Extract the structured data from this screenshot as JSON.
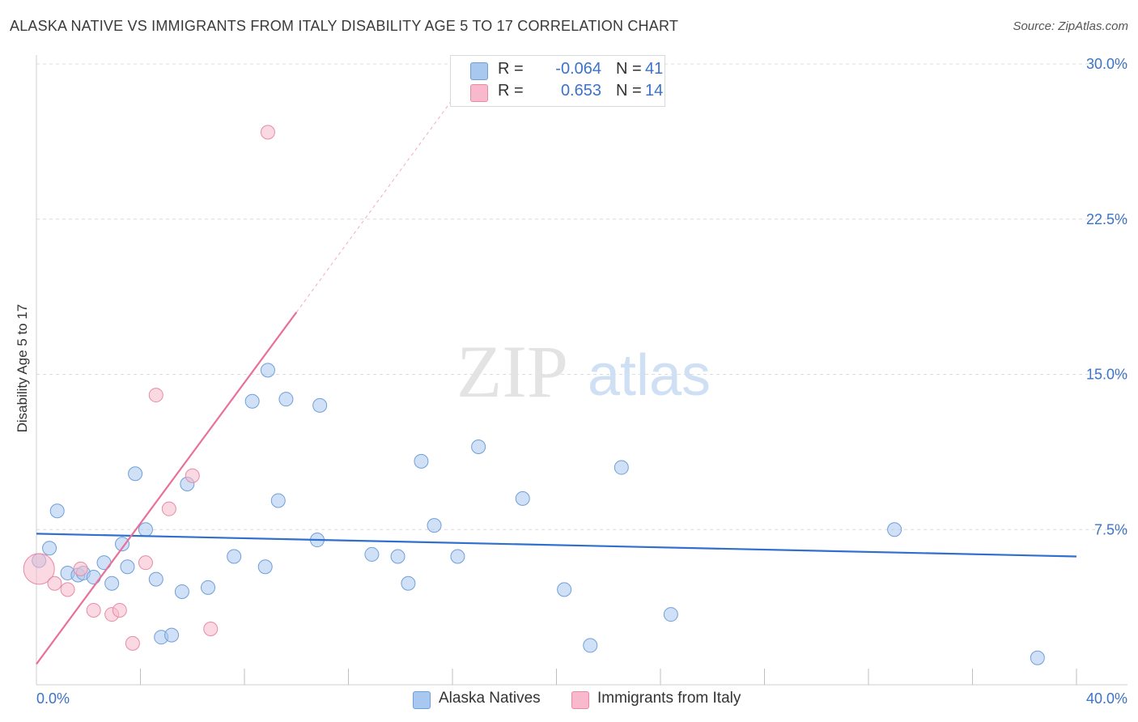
{
  "title": "ALASKA NATIVE VS IMMIGRANTS FROM ITALY DISABILITY AGE 5 TO 17 CORRELATION CHART",
  "source": "Source: ZipAtlas.com",
  "watermark": {
    "zip": "ZIP",
    "atlas": "atlas"
  },
  "legend": {
    "rows": [
      {
        "r_label": "R =",
        "r_value": "-0.064",
        "n_label": "N =",
        "n_value": "41",
        "color": "#a9c8f0"
      },
      {
        "r_label": "R =",
        "r_value": "0.653",
        "n_label": "N =",
        "n_value": "14",
        "color": "#f7b9cb"
      }
    ]
  },
  "bottom_legend": [
    "Alaska Natives",
    "Immigrants from Italy"
  ],
  "chart_data": {
    "type": "scatter",
    "title": "ALASKA NATIVE VS IMMIGRANTS FROM ITALY DISABILITY AGE 5 TO 17 CORRELATION CHART",
    "xlabel": "",
    "ylabel": "Disability Age 5 to 17",
    "xlim": [
      0,
      40
    ],
    "ylim": [
      0,
      30
    ],
    "x_tick_labels": [
      "0.0%",
      "40.0%"
    ],
    "y_ticks": [
      7.5,
      15.0,
      22.5,
      30.0
    ],
    "y_tick_labels": [
      "7.5%",
      "15.0%",
      "22.5%",
      "30.0%"
    ],
    "grid": true,
    "series": [
      {
        "name": "Alaska Natives",
        "color": "#a9c8f0",
        "stroke": "#6f9fd8",
        "points": [
          [
            0.1,
            6.0
          ],
          [
            0.5,
            6.6
          ],
          [
            0.8,
            8.4
          ],
          [
            1.2,
            5.4
          ],
          [
            1.6,
            5.3
          ],
          [
            1.8,
            5.4
          ],
          [
            2.2,
            5.2
          ],
          [
            2.6,
            5.9
          ],
          [
            2.9,
            4.9
          ],
          [
            3.3,
            6.8
          ],
          [
            3.5,
            5.7
          ],
          [
            3.8,
            10.2
          ],
          [
            4.2,
            7.5
          ],
          [
            4.6,
            5.1
          ],
          [
            4.8,
            2.3
          ],
          [
            5.2,
            2.4
          ],
          [
            5.6,
            4.5
          ],
          [
            5.8,
            9.7
          ],
          [
            6.6,
            4.7
          ],
          [
            7.6,
            6.2
          ],
          [
            8.3,
            13.7
          ],
          [
            8.8,
            5.7
          ],
          [
            8.9,
            15.2
          ],
          [
            9.3,
            8.9
          ],
          [
            9.6,
            13.8
          ],
          [
            10.8,
            7.0
          ],
          [
            10.9,
            13.5
          ],
          [
            12.9,
            6.3
          ],
          [
            13.9,
            6.2
          ],
          [
            14.3,
            4.9
          ],
          [
            14.8,
            10.8
          ],
          [
            15.3,
            7.7
          ],
          [
            16.2,
            6.2
          ],
          [
            17.0,
            11.5
          ],
          [
            18.7,
            9.0
          ],
          [
            20.3,
            4.6
          ],
          [
            21.3,
            1.9
          ],
          [
            22.5,
            10.5
          ],
          [
            24.4,
            3.4
          ],
          [
            33.0,
            7.5
          ],
          [
            38.5,
            1.3
          ]
        ]
      },
      {
        "name": "Immigrants from Italy",
        "color": "#f7b9cb",
        "stroke": "#e88aa6",
        "points": [
          [
            0.1,
            5.6
          ],
          [
            0.7,
            4.9
          ],
          [
            1.2,
            4.6
          ],
          [
            1.7,
            5.6
          ],
          [
            2.2,
            3.6
          ],
          [
            2.9,
            3.4
          ],
          [
            3.2,
            3.6
          ],
          [
            3.7,
            2.0
          ],
          [
            4.2,
            5.9
          ],
          [
            4.6,
            14.0
          ],
          [
            5.1,
            8.5
          ],
          [
            6.0,
            10.1
          ],
          [
            6.7,
            2.7
          ],
          [
            8.9,
            26.7
          ]
        ]
      }
    ],
    "trend_lines": [
      {
        "series": "Alaska Natives",
        "color": "#2f6fce",
        "from": [
          0,
          7.3
        ],
        "to": [
          40,
          6.2
        ]
      },
      {
        "series": "Immigrants from Italy",
        "color": "#e8709a",
        "from": [
          0,
          1.0
        ],
        "to": [
          10.0,
          18.0
        ],
        "dashed_to": [
          17.0,
          30.0
        ]
      }
    ]
  }
}
